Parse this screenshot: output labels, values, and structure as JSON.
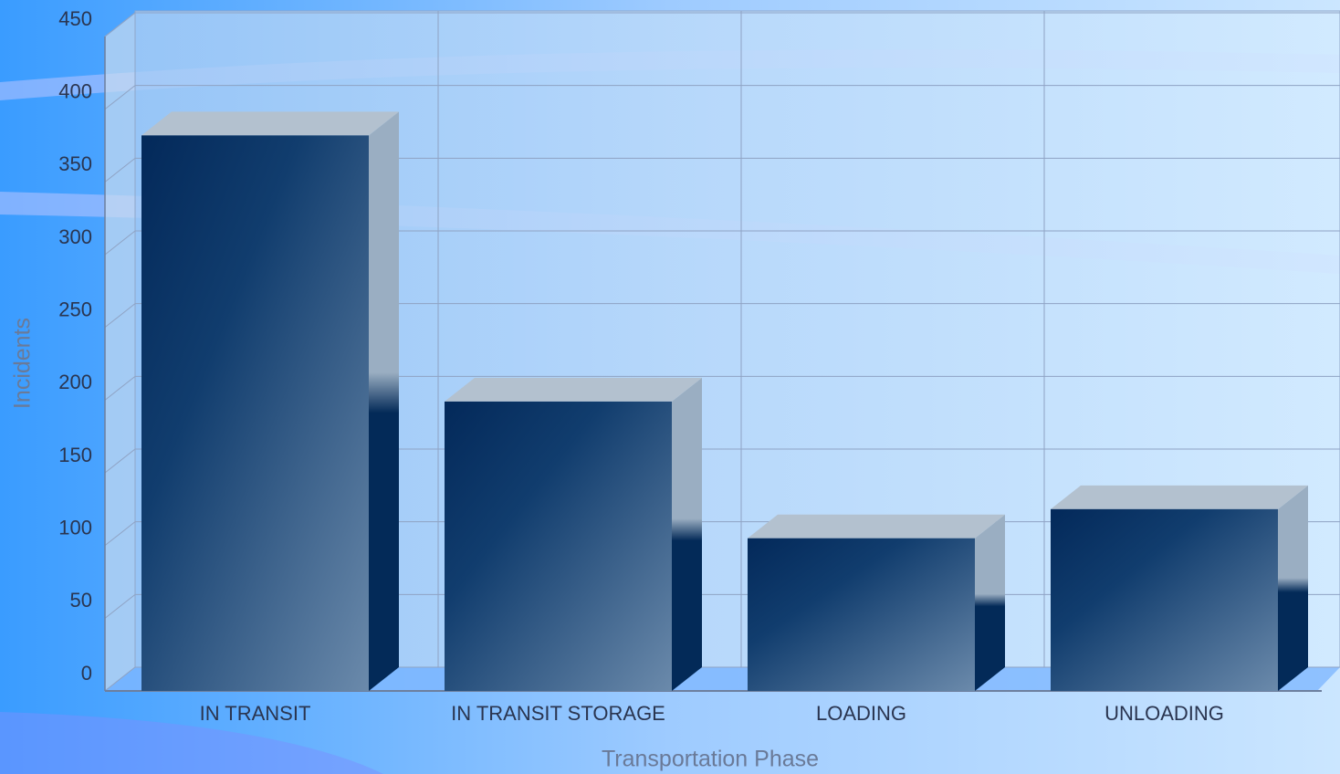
{
  "chart_data": {
    "type": "bar3d",
    "x_label": "Transportation Phase",
    "y_label": "Incidents",
    "categories": [
      "IN TRANSIT",
      "IN TRANSIT STORAGE",
      "LOADING",
      "UNLOADING"
    ],
    "values": [
      382,
      199,
      105,
      125
    ],
    "color": "#0f3563",
    "ylim": [
      0,
      450
    ],
    "yticks": [
      0,
      50,
      100,
      150,
      200,
      250,
      300,
      350,
      400,
      450
    ],
    "grid": true
  }
}
